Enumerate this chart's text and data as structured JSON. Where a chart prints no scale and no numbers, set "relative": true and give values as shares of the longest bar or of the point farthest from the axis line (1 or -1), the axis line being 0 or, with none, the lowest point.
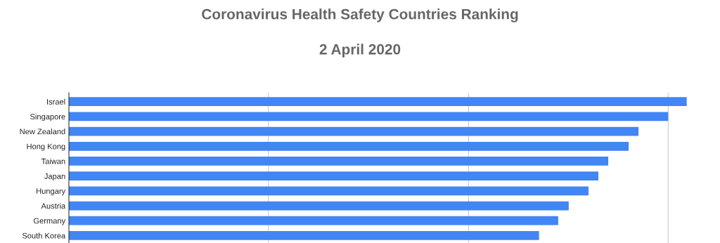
{
  "chart_data": {
    "type": "bar",
    "orientation": "horizontal",
    "relative": true,
    "title": "Coronavirus Health Safety Countries Ranking",
    "subtitle": "2 April 2020",
    "categories": [
      "Israel",
      "Singapore",
      "New Zealand",
      "Hong Kong",
      "Taiwan",
      "Japan",
      "Hungary",
      "Austria",
      "Germany",
      "South Korea"
    ],
    "values": [
      1,
      0.97,
      0.922,
      0.906,
      0.873,
      0.857,
      0.841,
      0.809,
      0.792,
      0.761
    ],
    "color": "#4285f4",
    "ref_lines": [
      {
        "axis": "x",
        "value": 0.323,
        "color": "#cccccc"
      },
      {
        "axis": "x",
        "value": 0.647,
        "color": "#cccccc"
      },
      {
        "axis": "x",
        "value": 0.97,
        "color": "#cccccc"
      }
    ]
  }
}
